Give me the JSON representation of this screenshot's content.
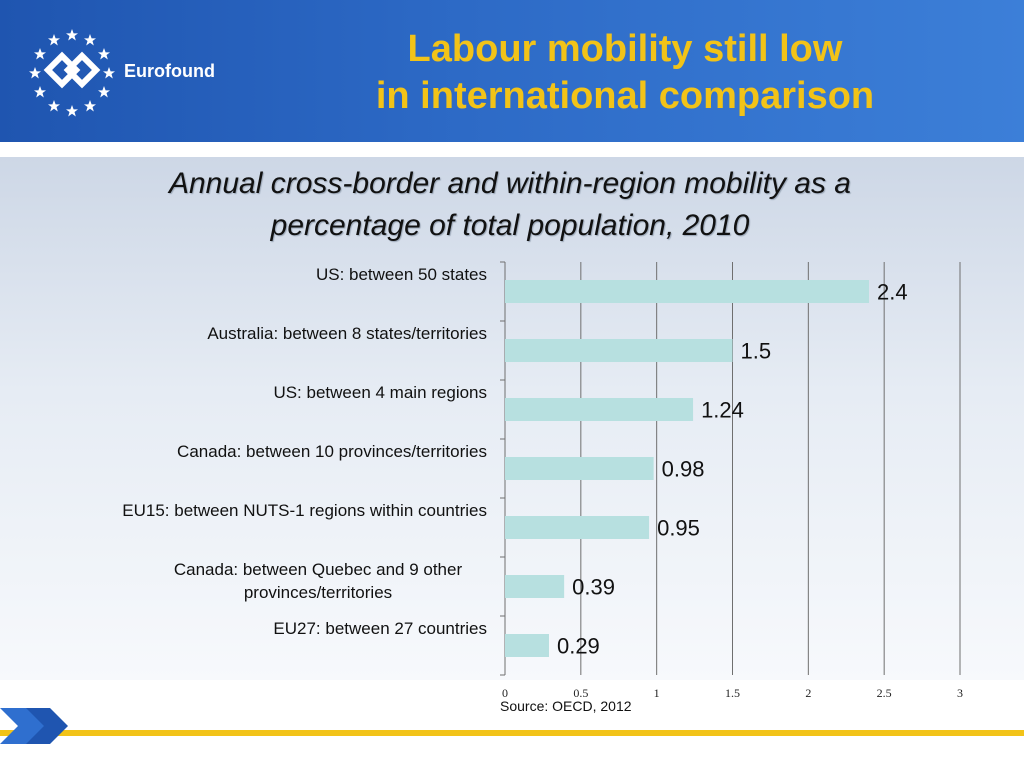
{
  "header": {
    "brand": "Eurofound",
    "title_line1": "Labour mobility still low",
    "title_line2": "in international comparison"
  },
  "subtitle_line1": "Annual cross-border and within-region mobility as a",
  "subtitle_line2": "percentage of total population, 2010",
  "source": "Source: OECD, 2012",
  "colors": {
    "header_blue": "#2d6ac6",
    "title_yellow": "#f2c318",
    "bar_fill": "#b7e0e0"
  },
  "chart_data": {
    "type": "bar",
    "orientation": "horizontal",
    "categories": [
      "US: between 50 states",
      "Australia: between 8 states/territories",
      "US: between 4 main regions",
      "Canada: between 10 provinces/territories",
      "EU15: between NUTS-1 regions within countries",
      "Canada: between Quebec and 9 other provinces/territories",
      "EU27: between 27 countries"
    ],
    "category_lines": [
      [
        "US: between 50 states"
      ],
      [
        "Australia: between 8 states/territories"
      ],
      [
        "US: between 4 main regions"
      ],
      [
        "Canada: between 10 provinces/territories"
      ],
      [
        "EU15: between NUTS-1 regions within countries"
      ],
      [
        "Canada: between Quebec and 9 other",
        "provinces/territories"
      ],
      [
        "EU27: between 27 countries"
      ]
    ],
    "values": [
      2.4,
      1.5,
      1.24,
      0.98,
      0.95,
      0.39,
      0.29
    ],
    "value_labels": [
      "2.4",
      "1.5",
      "1.24",
      "0.98",
      "0.95",
      "0.39",
      "0.29"
    ],
    "xlim": [
      0,
      3
    ],
    "xticks": [
      0,
      0.5,
      1,
      1.5,
      2,
      2.5,
      3
    ],
    "xtick_labels": [
      "0",
      "0.5",
      "1",
      "1.5",
      "2",
      "2.5",
      "3"
    ],
    "grid": true,
    "legend": "none"
  }
}
